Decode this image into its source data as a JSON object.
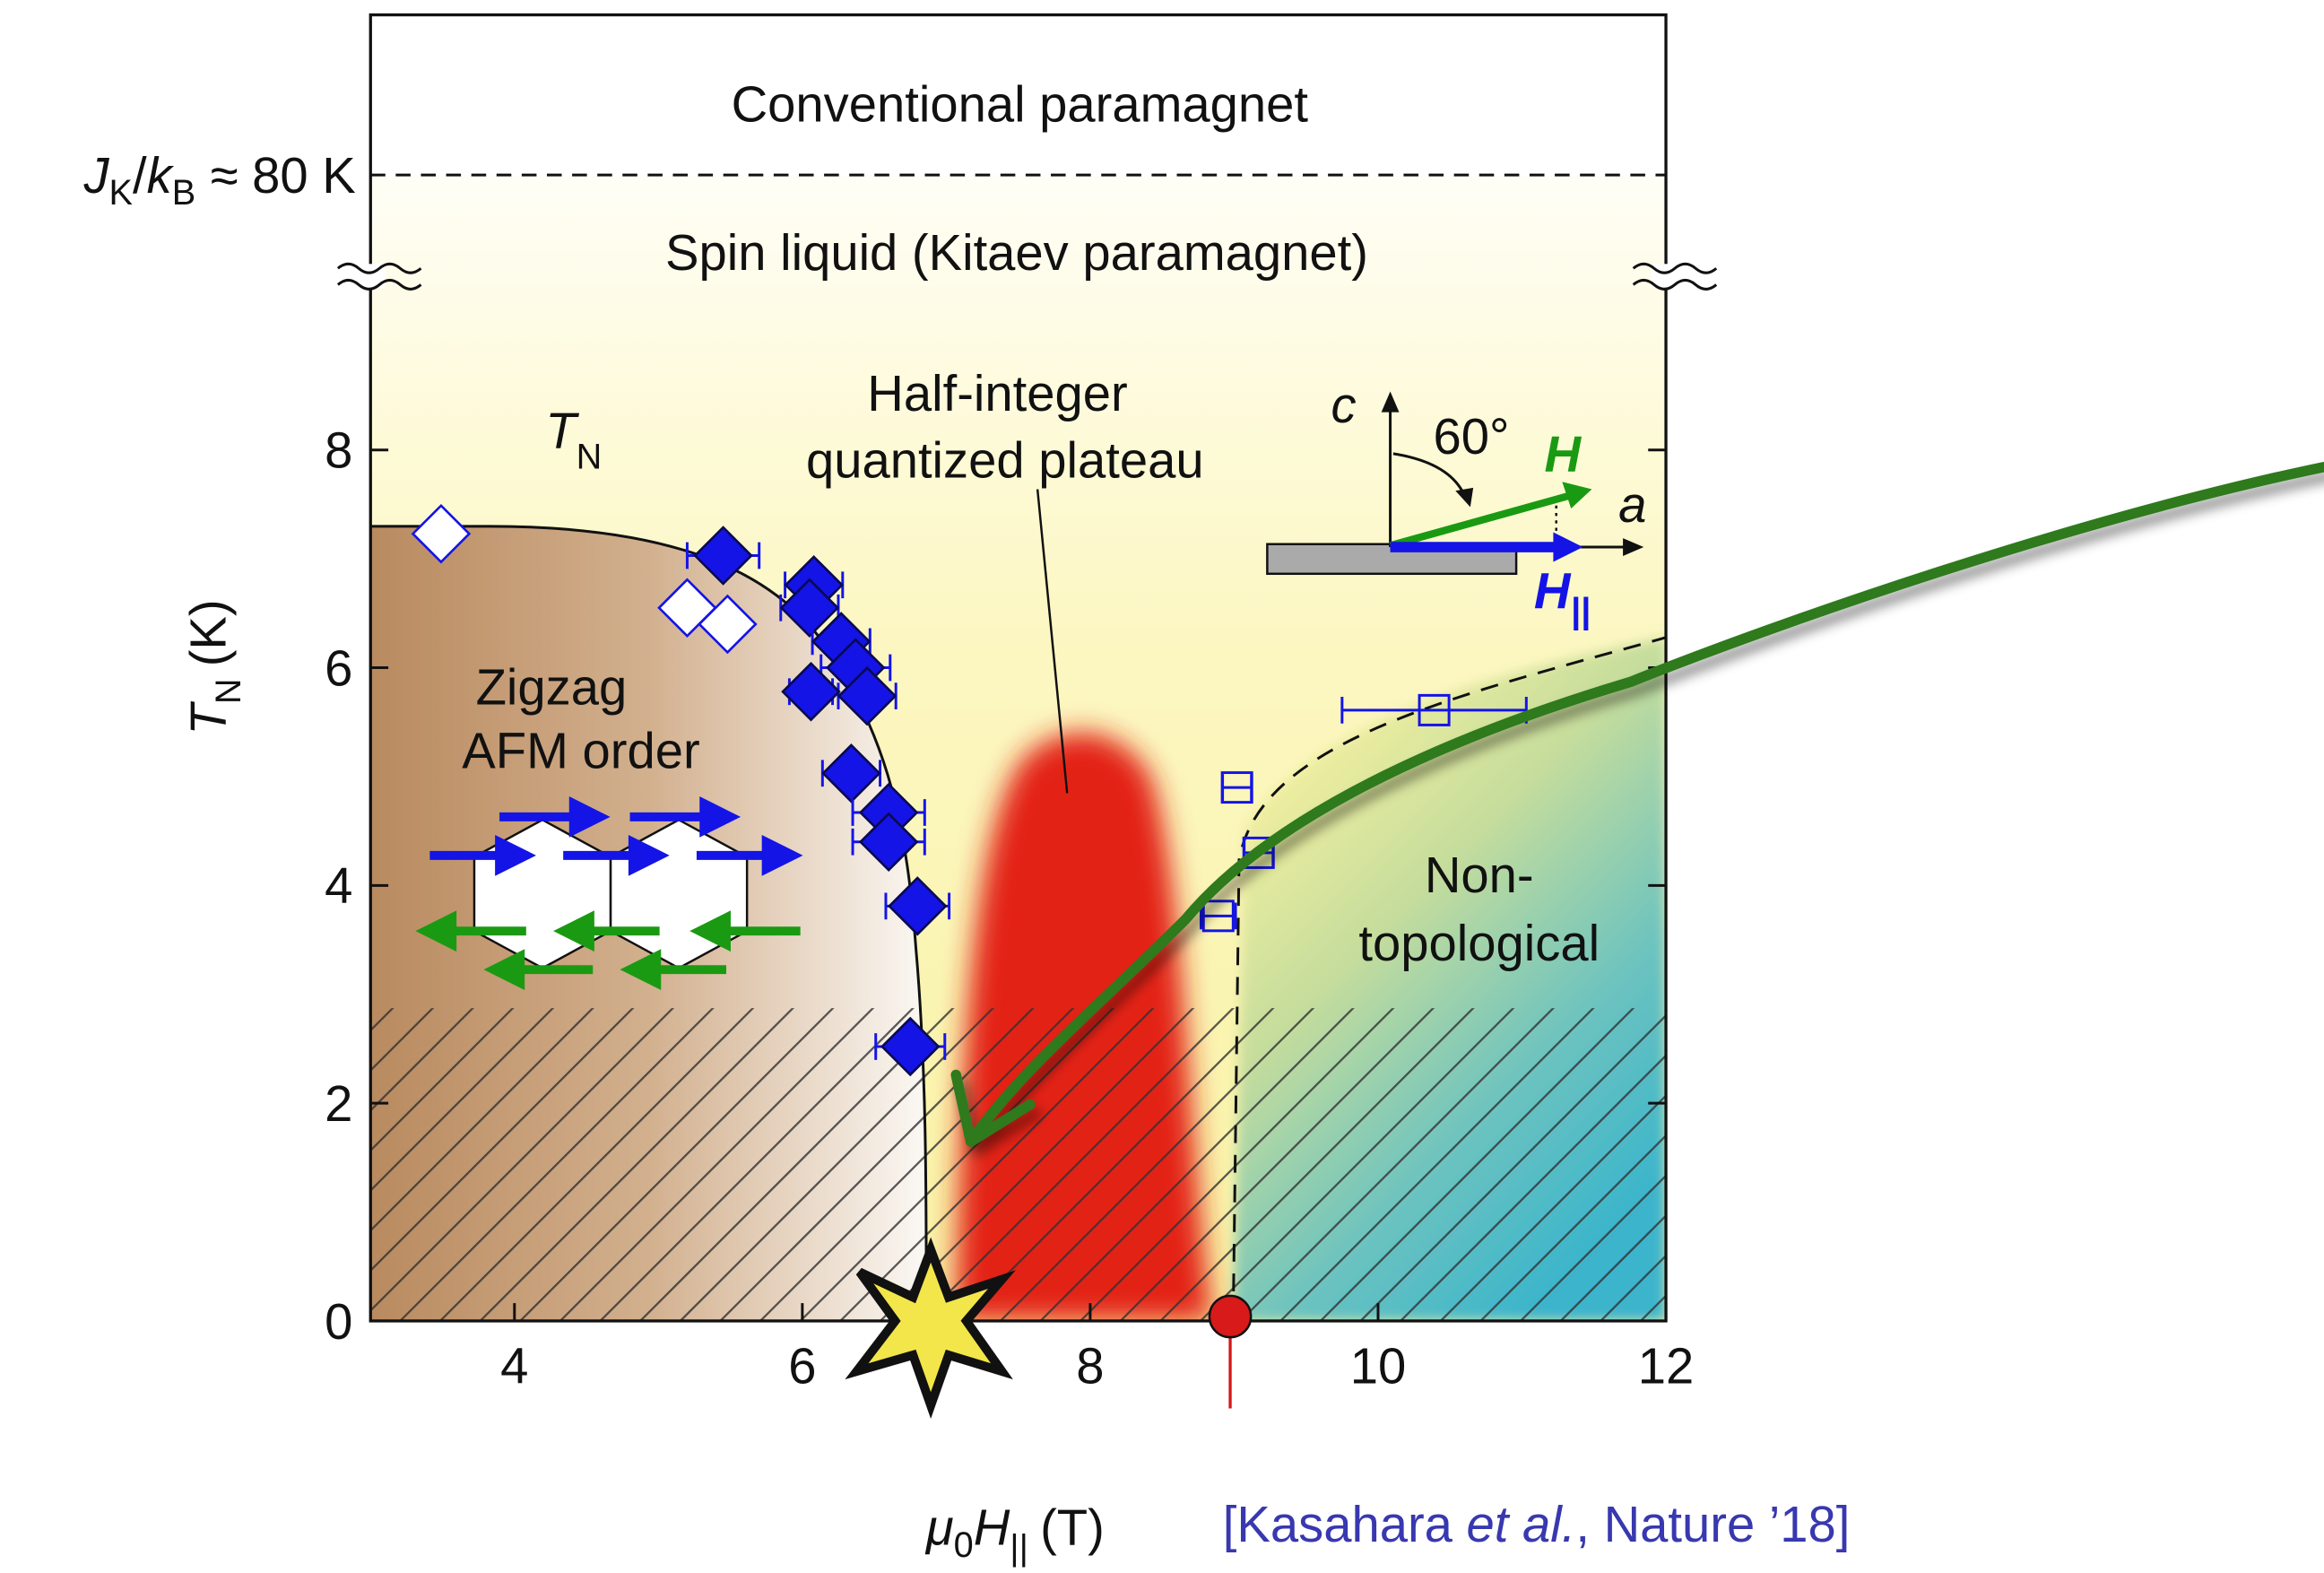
{
  "chart_data": {
    "type": "scatter",
    "xlim": [
      3,
      12
    ],
    "ylim": [
      0,
      9.6
    ],
    "xticks": [
      4,
      6,
      8,
      10,
      12
    ],
    "yticks": [
      0,
      2,
      4,
      6,
      8
    ],
    "x_label": {
      "mu": "μ",
      "mu_sub": "0",
      "h": "H",
      "h_sub": "||",
      "unit": "(T)"
    },
    "y_label": {
      "t": "T",
      "t_sub": "N",
      "unit": "(K)"
    },
    "series": [
      {
        "marker": "diamond",
        "filled": true,
        "color": "#1414e6",
        "x": [
          5.45,
          6.08,
          6.05,
          6.27,
          6.37,
          6.45,
          6.06,
          6.34,
          6.6,
          6.6,
          6.8,
          6.75
        ],
        "y": [
          7.03,
          6.76,
          6.55,
          6.24,
          6.0,
          5.74,
          5.78,
          5.03,
          4.67,
          4.4,
          3.81,
          2.52
        ],
        "xerr": [
          0.25,
          0.2,
          0.2,
          0.2,
          0.24,
          0.2,
          0.15,
          0.2,
          0.25,
          0.25,
          0.22,
          0.24
        ]
      },
      {
        "marker": "diamond",
        "filled": false,
        "color": "#1414e6",
        "x": [
          3.49,
          5.2,
          5.48
        ],
        "y": [
          7.23,
          6.55,
          6.4
        ]
      },
      {
        "marker": "square",
        "filled": false,
        "color": "#1414e6",
        "x": [
          9.02,
          9.17,
          8.89,
          10.39
        ],
        "y": [
          4.9,
          4.3,
          3.72,
          5.61
        ],
        "xerr": [
          0.1,
          0.1,
          0.12,
          0.64
        ]
      }
    ],
    "annotations": {
      "conventional": "Conventional paramagnet",
      "spin_liquid": "Spin liquid (Kitaev paramagnet)",
      "jk": {
        "j": "J",
        "j_sub": "K",
        "slash": "/",
        "k": "k",
        "k_sub": "B",
        "rest": "≈ 80 K"
      },
      "tn": {
        "t": "T",
        "sub": "N"
      },
      "zigzag": [
        "Zigzag",
        "AFM order"
      ],
      "plateau": [
        "Half-integer",
        "quantized plateau"
      ],
      "nontopo": [
        "Non-",
        "topological"
      ],
      "inset": {
        "c": "c",
        "angle": "60°",
        "h": "H",
        "a": "a",
        "hpar": "H",
        "hpar_sub": "||"
      }
    }
  },
  "citation": {
    "pre": "[Kasahara ",
    "etal": "et al.",
    "post": ", Nature ’18]"
  }
}
